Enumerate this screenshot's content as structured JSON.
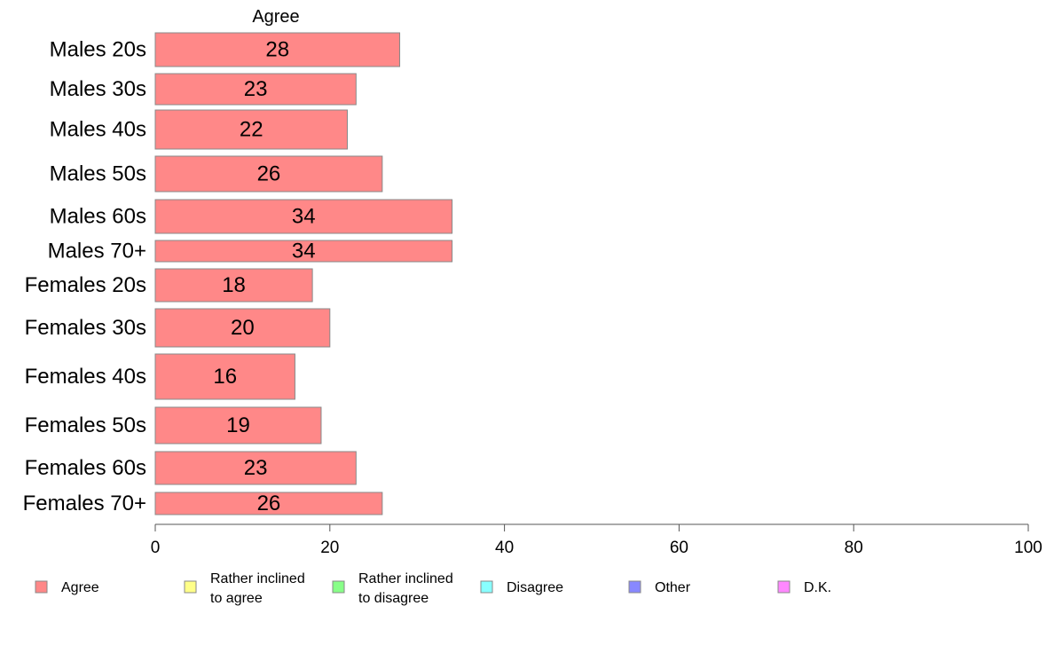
{
  "chart_data": {
    "type": "bar",
    "orientation": "horizontal",
    "series_title": "Agree",
    "categories": [
      "Males 20s",
      "Males 30s",
      "Males 40s",
      "Males 50s",
      "Males 60s",
      "Males 70+",
      "Females 20s",
      "Females 30s",
      "Females 40s",
      "Females 50s",
      "Females 60s",
      "Females 70+"
    ],
    "series": [
      {
        "name": "Agree",
        "color": "#ff8888",
        "values": [
          28,
          23,
          22,
          26,
          34,
          34,
          18,
          20,
          16,
          19,
          23,
          26
        ]
      }
    ],
    "data_labels": [
      "28",
      "23",
      "22",
      "26",
      "34",
      "34",
      "18",
      "20",
      "16",
      "19",
      "23",
      "26"
    ],
    "xlim": [
      0,
      100
    ],
    "xticks": [
      0,
      20,
      40,
      60,
      80,
      100
    ],
    "grid": false,
    "legend_position": "bottom",
    "legend": [
      {
        "label": [
          "Agree"
        ],
        "color": "#ff8888"
      },
      {
        "label": [
          "Rather inclined",
          "to agree"
        ],
        "color": "#ffff88"
      },
      {
        "label": [
          "Rather inclined",
          "to disagree"
        ],
        "color": "#88ff88"
      },
      {
        "label": [
          "Disagree"
        ],
        "color": "#88ffff"
      },
      {
        "label": [
          "Other"
        ],
        "color": "#8888ff"
      },
      {
        "label": [
          "D.K."
        ],
        "color": "#ff88ff"
      }
    ]
  }
}
